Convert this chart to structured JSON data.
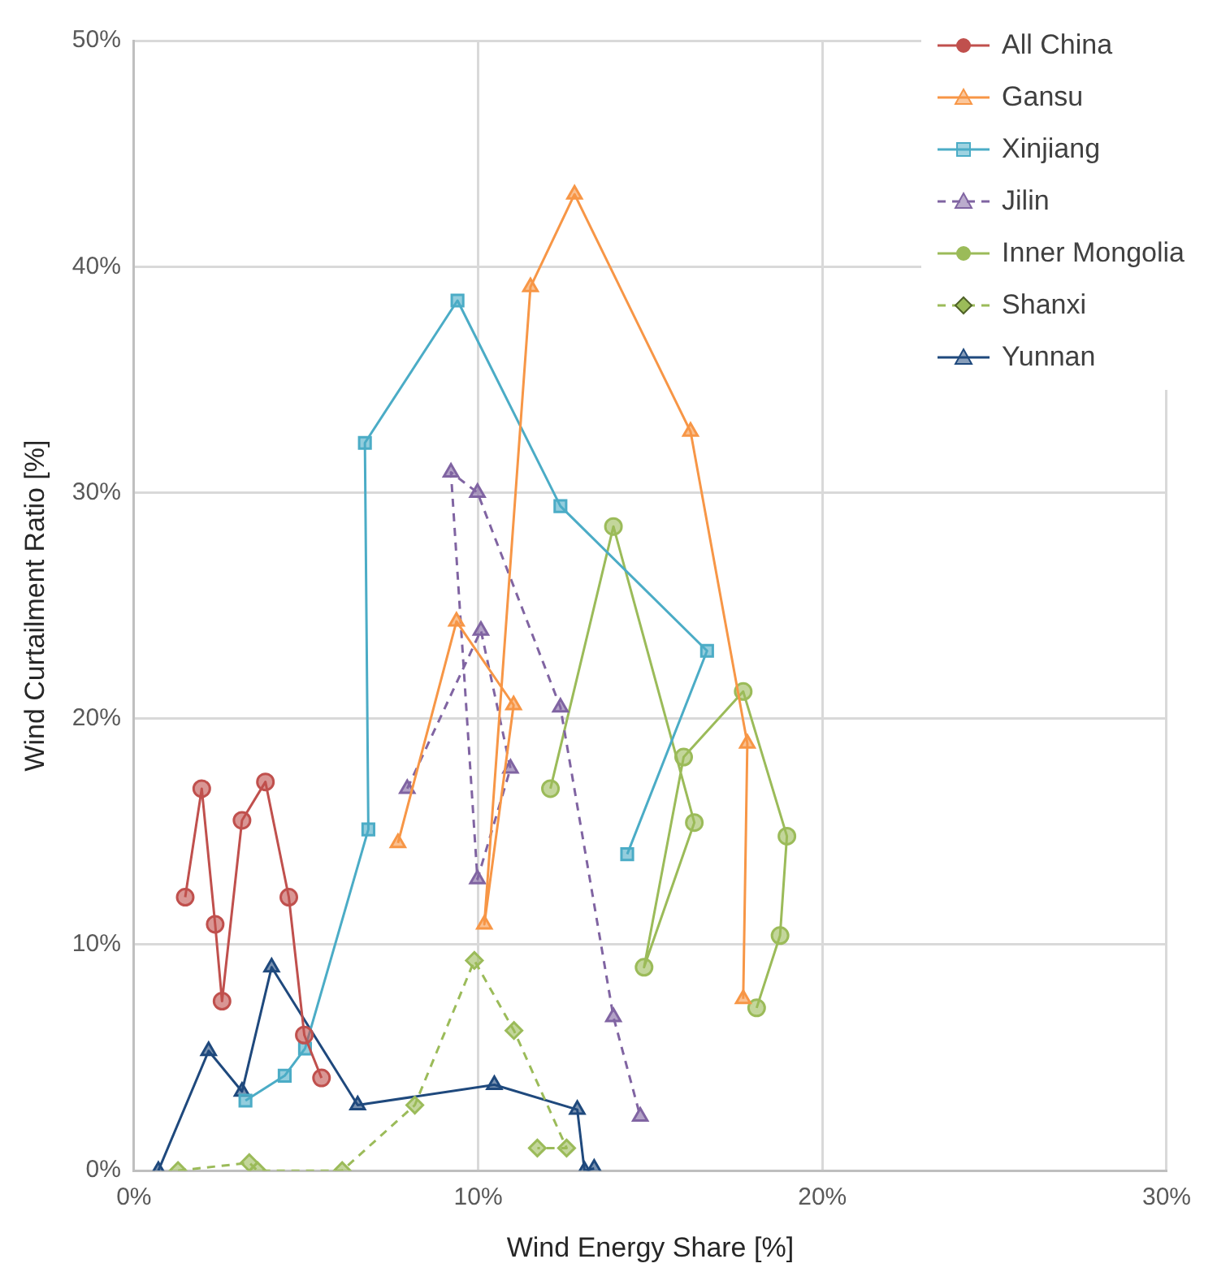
{
  "chart_data": {
    "type": "line",
    "xlabel": "Wind Energy Share [%]",
    "ylabel": "Wind Curtailment Ratio [%]",
    "xlim": [
      0,
      30
    ],
    "xticks": [
      {
        "value": 0,
        "label": "0%"
      },
      {
        "value": 10,
        "label": "10%"
      },
      {
        "value": 20,
        "label": "20%"
      },
      {
        "value": 30,
        "label": "30%"
      }
    ],
    "ylim": [
      0,
      50
    ],
    "yticks": [
      {
        "value": 0,
        "label": "0%"
      },
      {
        "value": 10,
        "label": "10%"
      },
      {
        "value": 20,
        "label": "20%"
      },
      {
        "value": 30,
        "label": "30%"
      },
      {
        "value": 40,
        "label": "40%"
      },
      {
        "value": 50,
        "label": "50%"
      }
    ],
    "grid": true,
    "legend": "top right",
    "series": [
      {
        "name": "All China",
        "color": "#c0504d",
        "marker": "circle",
        "line_style": "solid",
        "x": [
          1.49,
          1.97,
          2.36,
          2.56,
          3.14,
          3.82,
          4.5,
          4.95,
          5.45
        ],
        "values": [
          12.1,
          16.9,
          10.9,
          7.5,
          15.5,
          17.2,
          12.1,
          6.0,
          4.1
        ]
      },
      {
        "name": "Gansu",
        "color": "#f79646",
        "marker": "triangle",
        "line_style": "solid",
        "x": [
          7.67,
          9.37,
          11.03,
          10.18,
          11.52,
          12.8,
          16.17,
          17.82,
          17.7
        ],
        "values": [
          14.5,
          24.3,
          20.6,
          10.9,
          39.1,
          43.2,
          32.7,
          18.9,
          7.6
        ]
      },
      {
        "name": "Xinjiang",
        "color": "#4bacc6",
        "marker": "square",
        "line_style": "solid",
        "x": [
          3.24,
          4.38,
          4.97,
          6.81,
          6.71,
          9.4,
          12.39,
          16.65,
          14.33
        ],
        "values": [
          3.1,
          4.2,
          5.4,
          15.1,
          32.2,
          38.5,
          29.4,
          23.0,
          14.0
        ]
      },
      {
        "name": "Jilin",
        "color": "#8064a2",
        "marker": "triangle",
        "line_style": "dashed",
        "x": [
          7.94,
          10.08,
          10.94,
          9.98,
          9.21,
          9.98,
          12.39,
          13.93,
          14.71
        ],
        "values": [
          16.9,
          23.9,
          17.8,
          12.9,
          30.9,
          30.0,
          20.5,
          6.8,
          2.4
        ]
      },
      {
        "name": "Inner Mongolia",
        "color": "#9bbb59",
        "marker": "circle",
        "line_style": "solid",
        "x": [
          12.1,
          13.93,
          16.28,
          14.82,
          15.97,
          17.7,
          18.97,
          18.77,
          18.09
        ],
        "values": [
          16.9,
          28.5,
          15.4,
          9.0,
          18.3,
          21.2,
          14.8,
          10.4,
          7.2
        ]
      },
      {
        "name": "Shanxi",
        "color": "#9bbb59",
        "marker": "diamond",
        "line_style": "dashed",
        "x": [
          1.28,
          3.35,
          3.59,
          6.05,
          8.16,
          9.89,
          11.04,
          12.57,
          11.72
        ],
        "values": [
          0,
          0.35,
          0,
          0,
          2.9,
          9.3,
          6.2,
          1.0,
          1.0
        ]
      },
      {
        "name": "Yunnan",
        "color": "#1f497d",
        "marker": "triangle",
        "line_style": "solid",
        "x": [
          0.71,
          2.17,
          3.14,
          4.0,
          6.5,
          10.47,
          12.88,
          13.09,
          13.37
        ],
        "values": [
          0,
          5.3,
          3.5,
          9.0,
          2.9,
          3.8,
          2.7,
          0,
          0.1
        ]
      }
    ]
  }
}
